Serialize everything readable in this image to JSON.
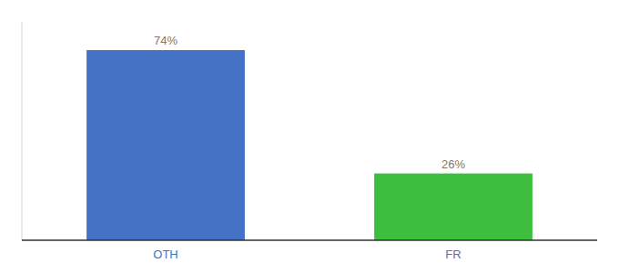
{
  "chart_data": {
    "type": "bar",
    "categories": [
      "OTH",
      "FR"
    ],
    "values": [
      74,
      26
    ],
    "value_labels": [
      "74%",
      "26%"
    ],
    "colors": [
      "#4472c4",
      "#3dbf3d"
    ],
    "ylim": [
      0,
      85
    ],
    "data_labels": true,
    "tick_labels": "x"
  }
}
